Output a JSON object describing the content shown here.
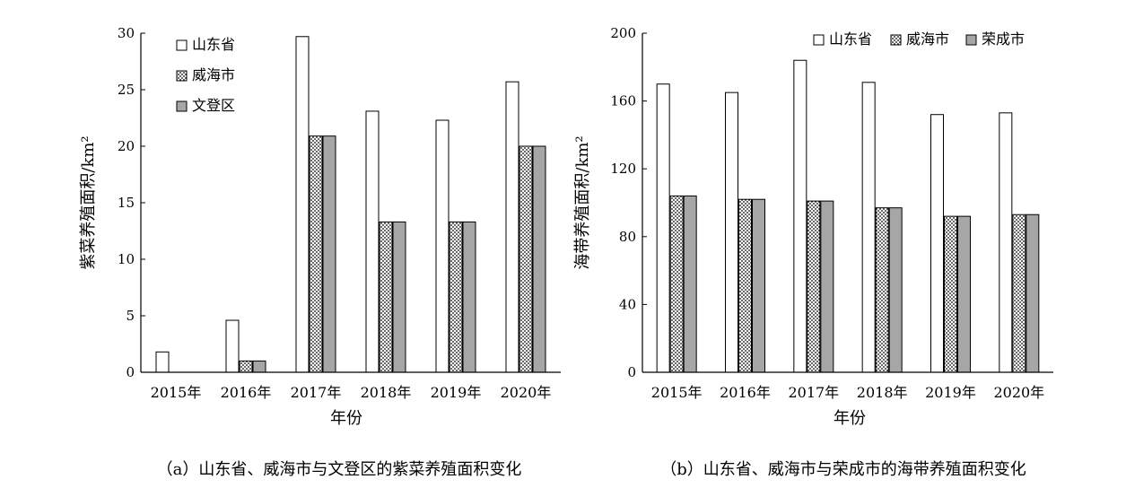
{
  "chart_data": [
    {
      "type": "bar",
      "caption": "（a）山东省、威海市与文登区的紫菜养殖面积变化",
      "xlabel": "年份",
      "ylabel": "紫菜养殖面积/km²",
      "categories": [
        "2015年",
        "2016年",
        "2017年",
        "2018年",
        "2019年",
        "2020年"
      ],
      "ylim": [
        0,
        30
      ],
      "yticks": [
        "0",
        "5",
        "10",
        "15",
        "20",
        "25",
        "30"
      ],
      "legend_position": "top-left",
      "series": [
        {
          "name": "山东省",
          "values": [
            1.8,
            4.6,
            29.7,
            23.1,
            22.3,
            25.7
          ],
          "color": "#ffffff",
          "pattern": "none"
        },
        {
          "name": "威海市",
          "values": [
            0,
            1.0,
            20.9,
            13.3,
            13.3,
            20.0
          ],
          "color": "#ffffff",
          "pattern": "dots"
        },
        {
          "name": "文登区",
          "values": [
            0,
            1.0,
            20.9,
            13.3,
            13.3,
            20.0
          ],
          "color": "#a6a6a6",
          "pattern": "none"
        }
      ]
    },
    {
      "type": "bar",
      "caption": "（b）山东省、威海市与荣成市的海带养殖面积变化",
      "xlabel": "年份",
      "ylabel": "海带养殖面积/km²",
      "categories": [
        "2015年",
        "2016年",
        "2017年",
        "2018年",
        "2019年",
        "2020年"
      ],
      "ylim": [
        0,
        200
      ],
      "yticks": [
        "0",
        "40",
        "80",
        "120",
        "160",
        "200"
      ],
      "legend_position": "top-right",
      "series": [
        {
          "name": "山东省",
          "values": [
            170,
            165,
            184,
            171,
            152,
            153
          ],
          "color": "#ffffff",
          "pattern": "none"
        },
        {
          "name": "威海市",
          "values": [
            104,
            102,
            101,
            97,
            92,
            93
          ],
          "color": "#ffffff",
          "pattern": "dots"
        },
        {
          "name": "荣成市",
          "values": [
            104,
            102,
            101,
            97,
            92,
            93
          ],
          "color": "#a6a6a6",
          "pattern": "none"
        }
      ]
    }
  ]
}
